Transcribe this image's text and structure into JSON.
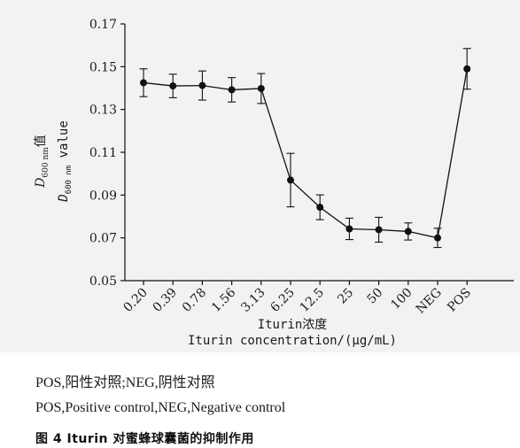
{
  "chart_data": {
    "type": "line",
    "categories": [
      "0.20",
      "0.39",
      "0.78",
      "1.56",
      "3.13",
      "6.25",
      "12.5",
      "25",
      "50",
      "100",
      "NEG",
      "POS"
    ],
    "series": [
      {
        "values": [
          0.1425,
          0.141,
          0.1412,
          0.1392,
          0.1398,
          0.097,
          0.0843,
          0.0742,
          0.0738,
          0.073,
          0.07,
          0.149
        ],
        "error": [
          0.0065,
          0.0055,
          0.0068,
          0.0057,
          0.007,
          0.0125,
          0.0058,
          0.005,
          0.0058,
          0.004,
          0.0045,
          0.0095
        ]
      }
    ],
    "ylim": [
      0.05,
      0.17
    ],
    "yticks": [
      "0.17",
      "0.15",
      "0.13",
      "0.11",
      "0.09",
      "0.07",
      "0.05"
    ],
    "ylabel_cn_main": "D",
    "ylabel_cn_sub": "600 nm",
    "ylabel_cn_suffix": "值",
    "ylabel_en_main": "D",
    "ylabel_en_sub": "600 nm",
    "ylabel_en_suffix": " value",
    "xlabel_cn": "Iturin浓度",
    "xlabel_en": "Iturin concentration/(μg/mL)",
    "grid": false,
    "color": "#111111",
    "background": "#f2f2f2"
  },
  "notes": {
    "cn": "POS,阳性对照;NEG,阴性对照",
    "en": "POS,Positive control,NEG,Negative control"
  },
  "caption": "图 4 Iturin 对蜜蜂球囊菌的抑制作用"
}
